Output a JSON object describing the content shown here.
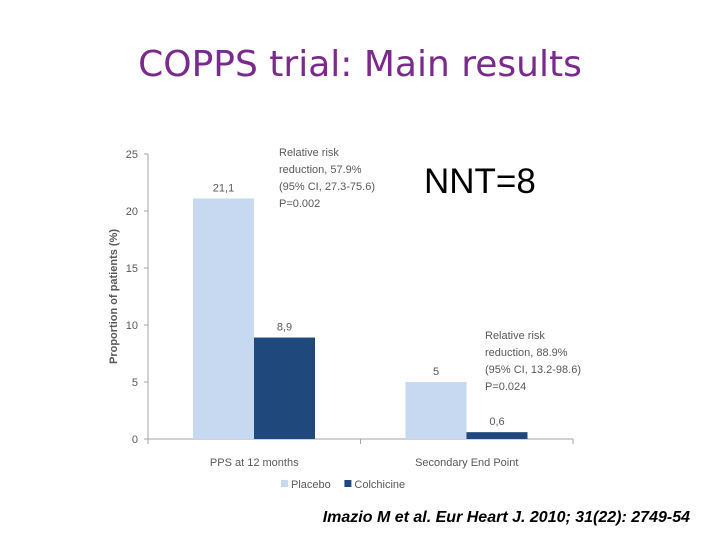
{
  "slide": {
    "title": "COPPS trial: Main results",
    "nnt": "NNT=8",
    "citation": "Imazio M et al. Eur Heart J. 2010; 31(22): 2749-54"
  },
  "colors": {
    "title": "#7a2a8c",
    "placebo": "#c6d9f1",
    "colchicine": "#1f497d",
    "axis": "#a6a6a6",
    "text": "#595959"
  },
  "chart_data": {
    "type": "bar",
    "title": "",
    "xlabel": "",
    "ylabel": "Proportion of patients (%)",
    "ylim": [
      0,
      25
    ],
    "yticks": [
      0,
      5,
      10,
      15,
      20,
      25
    ],
    "categories": [
      "PPS at 12 months",
      "Secondary End Point"
    ],
    "series": [
      {
        "name": "Placebo",
        "values": [
          21.1,
          5
        ],
        "labels": [
          "21,1",
          "5"
        ],
        "color": "#c6d9f1"
      },
      {
        "name": "Colchicine",
        "values": [
          8.9,
          0.6
        ],
        "labels": [
          "8,9",
          "0,6"
        ],
        "color": "#1f497d"
      }
    ],
    "annotations": [
      {
        "category": "PPS at 12 months",
        "lines": [
          "Relative risk",
          "reduction, 57.9%",
          "(95% CI, 27.3-75.6)",
          "P=0.002"
        ]
      },
      {
        "category": "Secondary End Point",
        "lines": [
          "Relative risk",
          "reduction, 88.9%",
          "(95% CI, 13.2-98.6)",
          "P=0.024"
        ]
      }
    ],
    "legend": "bottom",
    "grid": false
  }
}
